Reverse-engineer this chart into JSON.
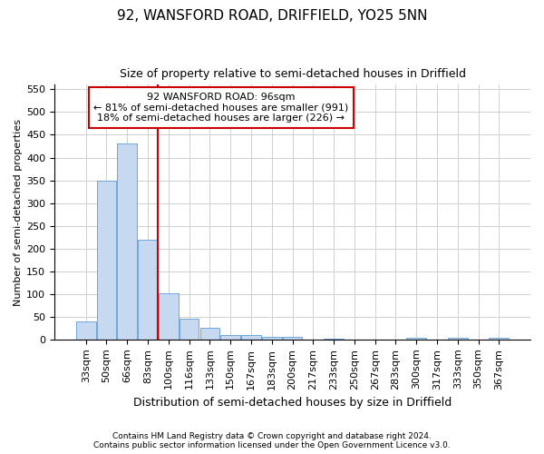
{
  "title1": "92, WANSFORD ROAD, DRIFFIELD, YO25 5NN",
  "title2": "Size of property relative to semi-detached houses in Driffield",
  "xlabel": "Distribution of semi-detached houses by size in Driffield",
  "ylabel": "Number of semi-detached properties",
  "footer1": "Contains HM Land Registry data © Crown copyright and database right 2024.",
  "footer2": "Contains public sector information licensed under the Open Government Licence v3.0.",
  "categories": [
    "33sqm",
    "50sqm",
    "66sqm",
    "83sqm",
    "100sqm",
    "116sqm",
    "133sqm",
    "150sqm",
    "167sqm",
    "183sqm",
    "200sqm",
    "217sqm",
    "233sqm",
    "250sqm",
    "267sqm",
    "283sqm",
    "300sqm",
    "317sqm",
    "333sqm",
    "350sqm",
    "367sqm"
  ],
  "values": [
    40,
    350,
    430,
    220,
    102,
    45,
    25,
    10,
    10,
    6,
    6,
    0,
    2,
    0,
    0,
    0,
    3,
    0,
    4,
    0,
    4
  ],
  "bar_color": "#c6d9f0",
  "bar_edge_color": "#5b9bd5",
  "property_line_index": 4,
  "property_label": "92 WANSFORD ROAD: 96sqm",
  "smaller_pct": "81%",
  "smaller_count": "991",
  "larger_pct": "18%",
  "larger_count": "226",
  "annotation_box_color": "#cc0000",
  "vline_color": "#cc0000",
  "ylim": [
    0,
    560
  ],
  "yticks": [
    0,
    50,
    100,
    150,
    200,
    250,
    300,
    350,
    400,
    450,
    500,
    550
  ],
  "title1_fontsize": 11,
  "title2_fontsize": 9,
  "xlabel_fontsize": 9,
  "ylabel_fontsize": 8,
  "tick_fontsize": 8,
  "footer_fontsize": 6.5,
  "annot_fontsize": 8
}
